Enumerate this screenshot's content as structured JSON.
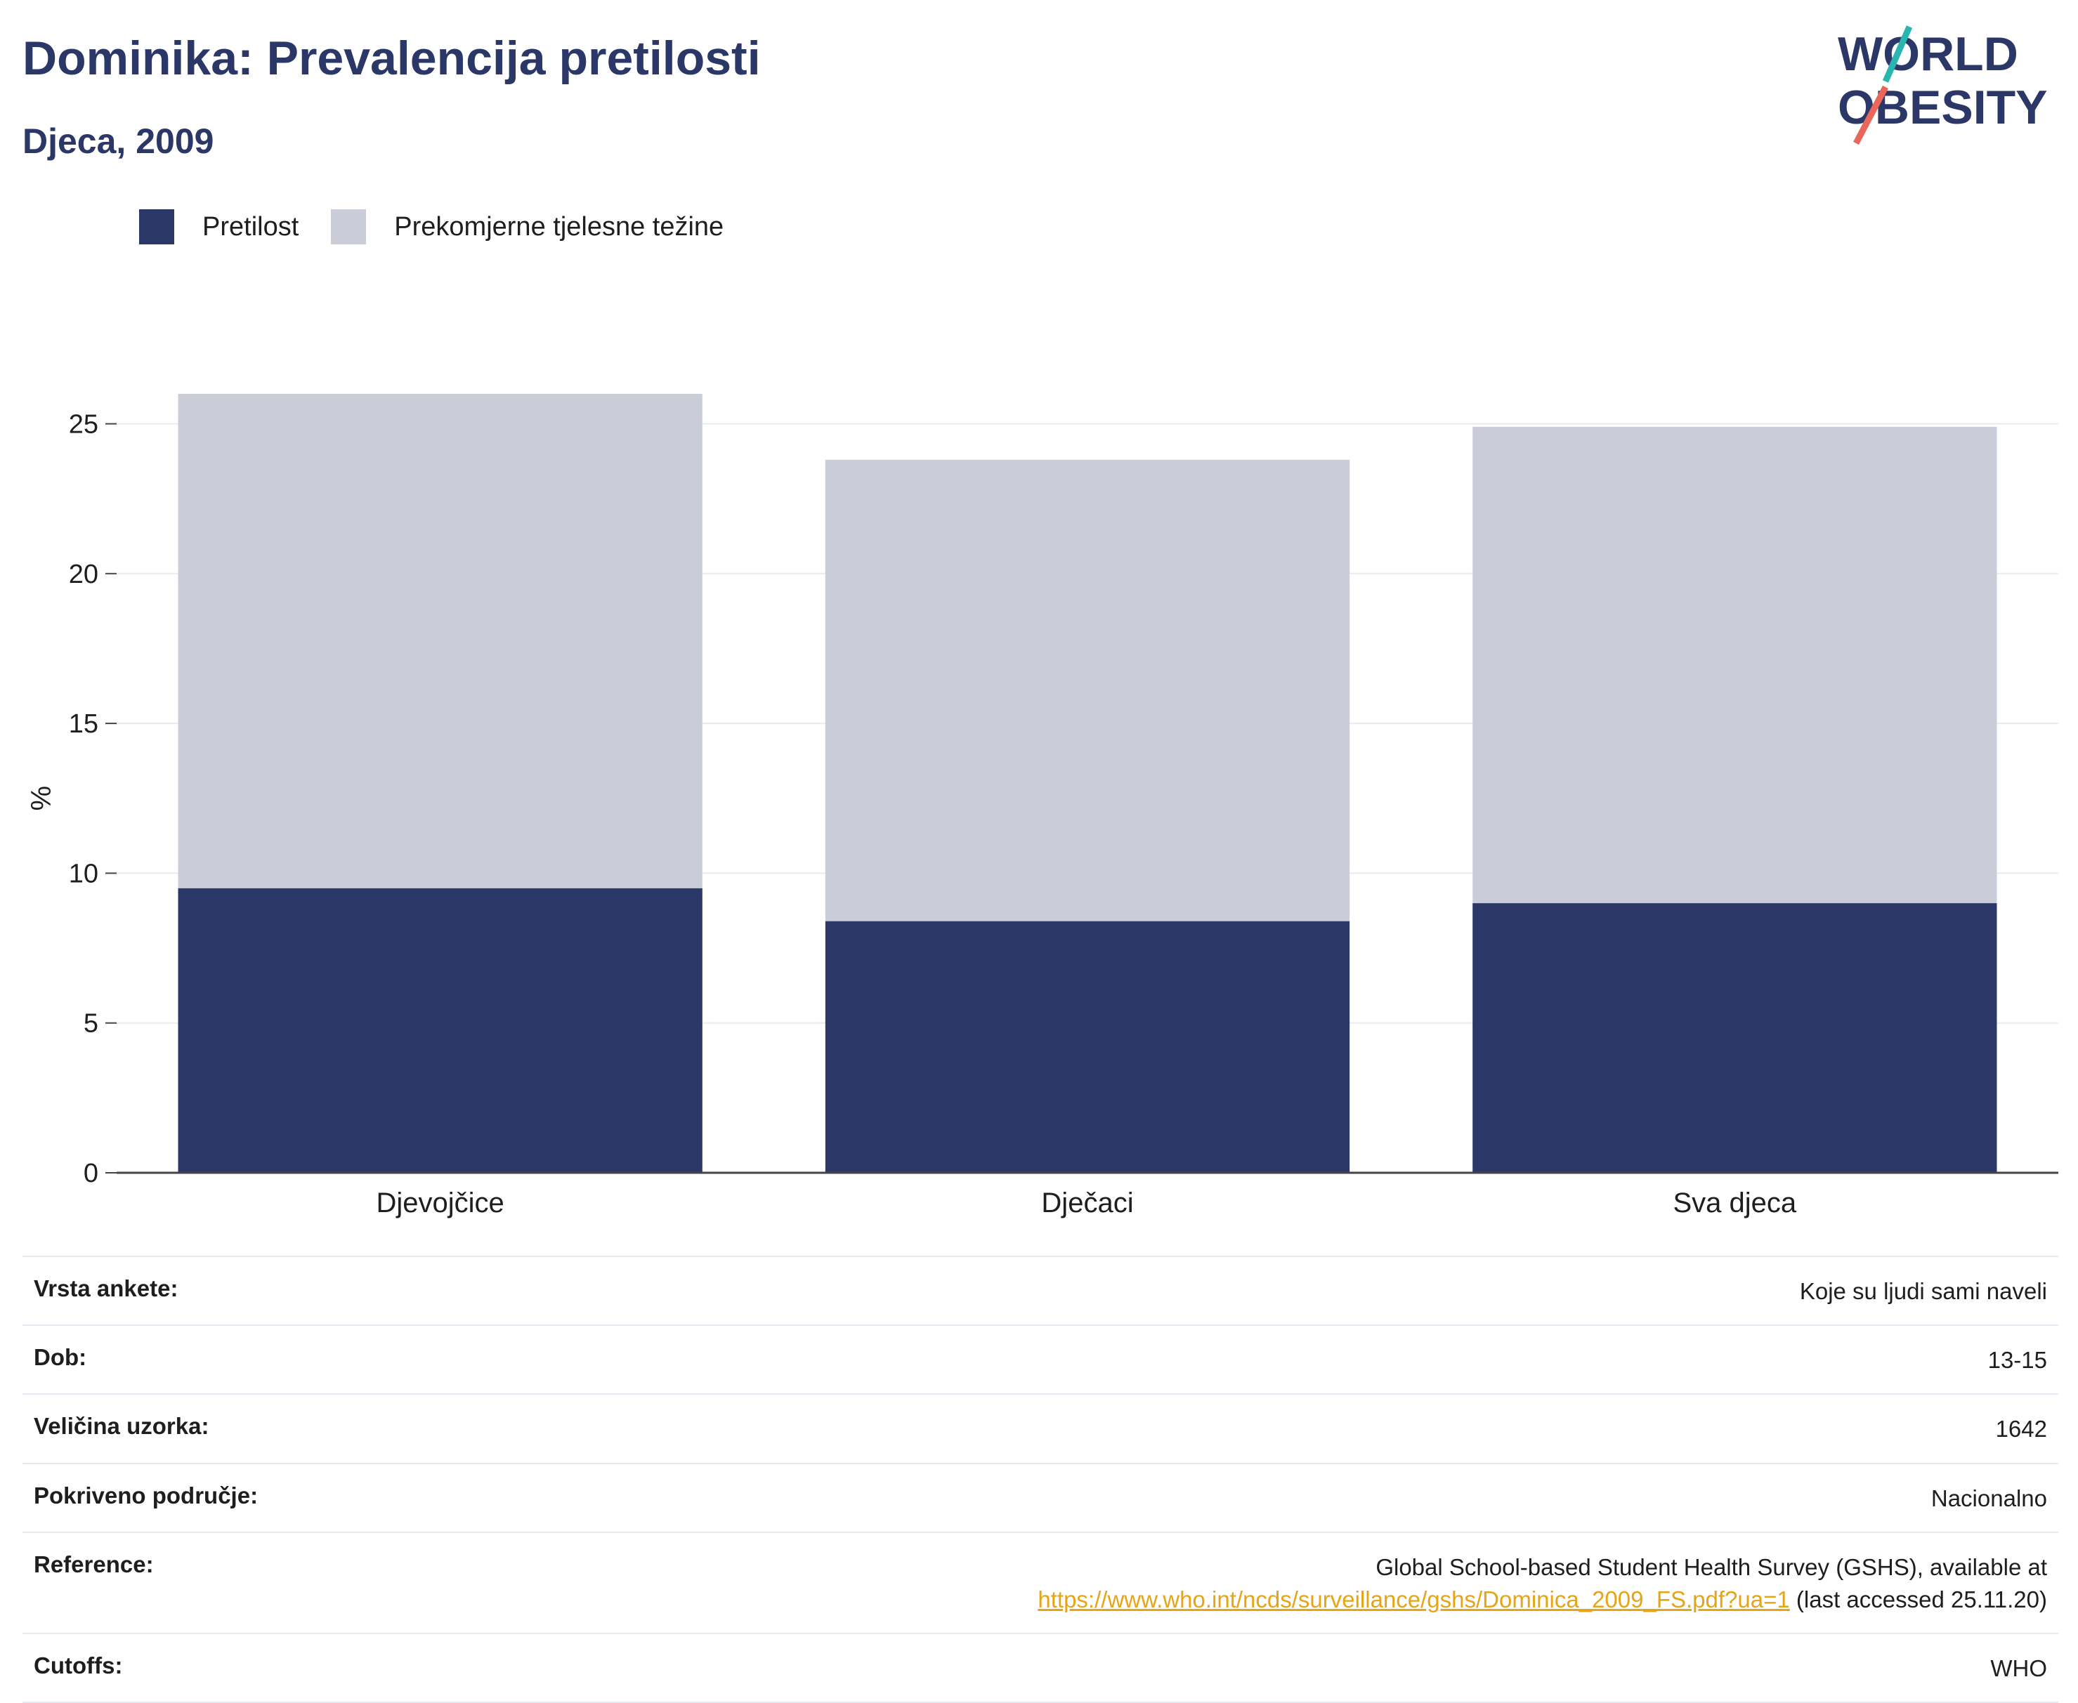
{
  "header": {
    "title": "Dominika: Prevalencija pretilosti",
    "subtitle": "Djeca, 2009"
  },
  "logo": {
    "line1": "WORLD",
    "line2": "OBESITY",
    "accent_colors": [
      "#2bb5b0",
      "#e8675a"
    ]
  },
  "legend": [
    {
      "label": "Pretilost",
      "color": "#2b3766"
    },
    {
      "label": "Prekomjerne tjelesne težine",
      "color": "#cacdd8"
    }
  ],
  "chart_data": {
    "type": "bar",
    "stacked": true,
    "categories": [
      "Djevojčice",
      "Dječaci",
      "Sva djeca"
    ],
    "series": [
      {
        "name": "Pretilost",
        "values": [
          9.5,
          8.4,
          9.0
        ],
        "color": "#2b3766"
      },
      {
        "name": "Prekomjerne tjelesne težine",
        "values": [
          16.5,
          15.4,
          15.9
        ],
        "color": "#cacdd8"
      }
    ],
    "ylabel": "%",
    "ylim": [
      0,
      27
    ],
    "yticks": [
      0,
      5,
      10,
      15,
      20,
      25
    ],
    "grid": true,
    "legend_position": "top-left"
  },
  "info": {
    "survey_type": {
      "label": "Vrsta ankete:",
      "value": "Koje su ljudi sami naveli"
    },
    "age": {
      "label": "Dob:",
      "value": "13-15"
    },
    "sample_size": {
      "label": "Veličina uzorka:",
      "value": "1642"
    },
    "area": {
      "label": "Pokriveno područje:",
      "value": "Nacionalno"
    },
    "reference": {
      "label": "Reference:",
      "text_before": "Global School-based Student Health Survey (GSHS), available at",
      "link": "https://www.who.int/ncds/surveillance/gshs/Dominica_2009_FS.pdf?ua=1",
      "text_after": "(last accessed 25.11.20)"
    },
    "cutoffs": {
      "label": "Cutoffs:",
      "value": "WHO"
    }
  }
}
